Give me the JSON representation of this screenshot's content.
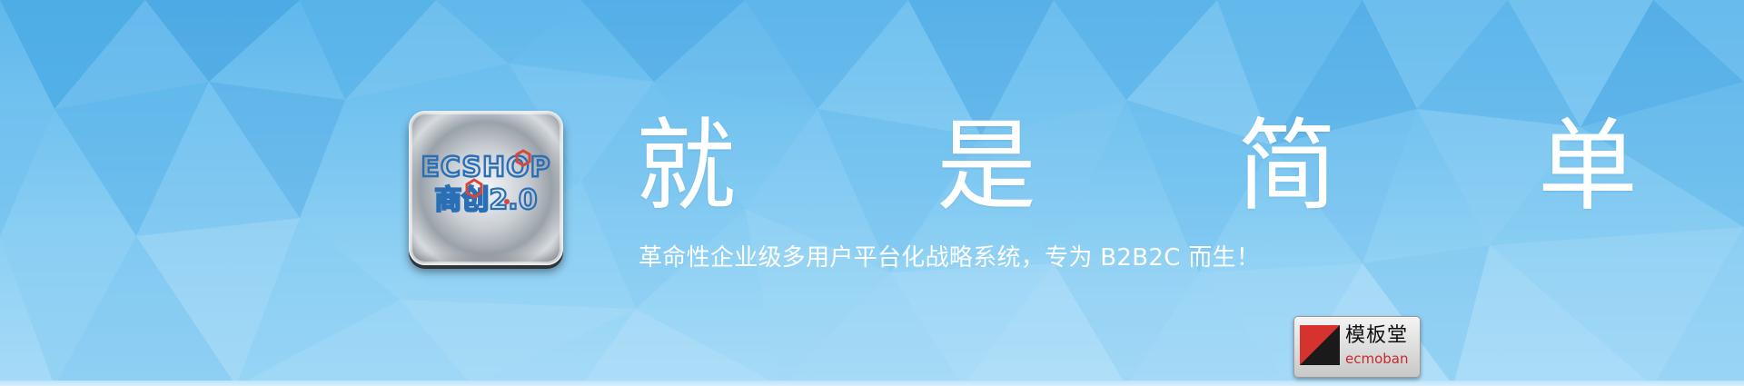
{
  "banner": {
    "headline": "就 是 简 单",
    "subline": "革命性企业级多用户平台化战略系统，专为 B2B2C 而生！"
  },
  "app_icon": {
    "brand_text": "ECSHOP",
    "glyph_text": "商创2.0",
    "icon_name": "ecshop-app-icon"
  },
  "badge": {
    "cn_label": "模板堂",
    "en_label": "ecmoban",
    "icon_name": "ecmoban-logo"
  },
  "colors": {
    "sky_top": "#5fb8ec",
    "sky_bottom": "#a6dbf7",
    "headline": "#ffffff",
    "icon_blue": "#2a6fb5",
    "icon_red": "#d9463a",
    "badge_red": "#c62a2a"
  }
}
